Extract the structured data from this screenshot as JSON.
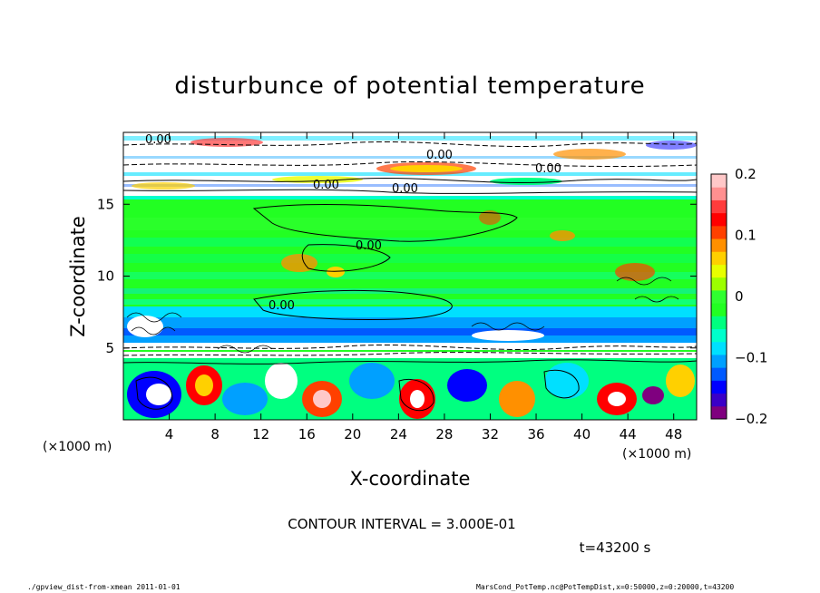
{
  "chart_data": {
    "type": "heatmap",
    "title": "disturbunce of potential temperature",
    "xlabel": "X-coordinate",
    "ylabel": "Z-coordinate",
    "x_unit_label": "(×1000 m)",
    "z_unit_label": "(×1000 m)",
    "x_range": [
      0,
      50
    ],
    "z_range": [
      0,
      20
    ],
    "x_ticks": [
      4,
      8,
      12,
      16,
      20,
      24,
      28,
      32,
      36,
      40,
      44,
      48
    ],
    "z_ticks": [
      5,
      10,
      15
    ],
    "colorbar": {
      "range": [
        -0.2,
        0.2
      ],
      "ticks": [
        {
          "value": 0.2,
          "label": "0.2"
        },
        {
          "value": 0.1,
          "label": "0.1"
        },
        {
          "value": 0,
          "label": "0"
        },
        {
          "value": -0.1,
          "label": "−0.1"
        },
        {
          "value": -0.2,
          "label": "−0.2"
        }
      ],
      "colors": [
        "#7f007f",
        "#3a00c8",
        "#0000ff",
        "#005aff",
        "#00a0ff",
        "#00e0ff",
        "#00ffcc",
        "#00ff80",
        "#22ff22",
        "#30ff30",
        "#9cff00",
        "#e8ff00",
        "#ffd000",
        "#ff9000",
        "#ff4000",
        "#ff0000",
        "#ff3c3c",
        "#ff9090",
        "#ffc8c8"
      ]
    },
    "contour_labels": [
      "0.00",
      "0.00",
      "0.00",
      "0.00",
      "0.00",
      "0.00",
      "0.00"
    ],
    "contour_interval": "CONTOUR INTERVAL = 3.000E-01",
    "time_label": "t=43200 s"
  },
  "footer": {
    "left": "./gpview_dist-from-xmean  2011-01-01",
    "right": "MarsCond_PotTemp.nc@PotTempDist,x=0:50000,z=0:20000,t=43200"
  }
}
